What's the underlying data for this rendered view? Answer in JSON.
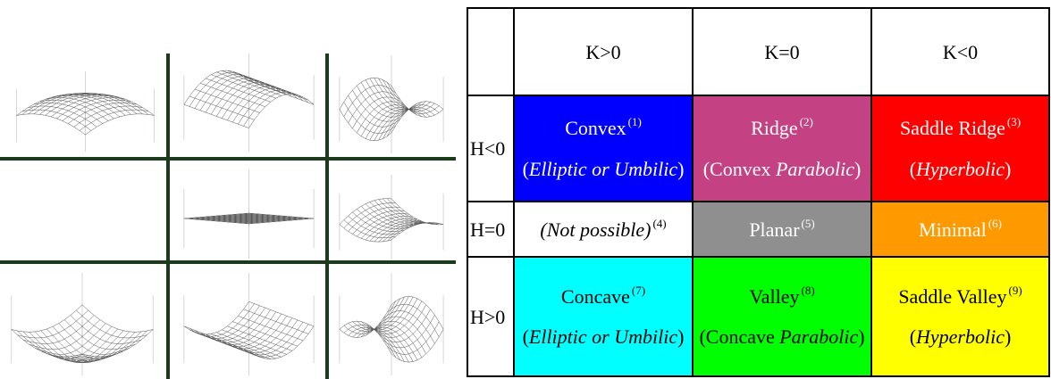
{
  "colors": {
    "convex": "#0000ff",
    "ridge": "#c44283",
    "saddle_ridge": "#ff0000",
    "not_possible": "#ffffff",
    "planar": "#8f8f8f",
    "minimal": "#ff9900",
    "concave": "#00ffff",
    "valley": "#00ff00",
    "saddle_valley": "#ffff00",
    "divider": "#1c3a1c"
  },
  "plots": [
    {
      "name": "convex-surface-plot"
    },
    {
      "name": "ridge-surface-plot"
    },
    {
      "name": "saddle-ridge-surface-plot"
    },
    {
      "name": "empty-plot"
    },
    {
      "name": "planar-surface-plot"
    },
    {
      "name": "minimal-surface-plot"
    },
    {
      "name": "concave-surface-plot"
    },
    {
      "name": "valley-surface-plot"
    },
    {
      "name": "saddle-valley-surface-plot"
    }
  ],
  "table": {
    "columns": [
      "K>0",
      "K=0",
      "K<0"
    ],
    "rows": [
      {
        "label": "H<0",
        "cells": [
          {
            "title": "Convex",
            "num": "(1)",
            "sub": "Elliptic or Umbilic",
            "sub_pre": "(",
            "sub_italic": "Elliptic or Umbilic",
            "sub_post": ")",
            "color_key": "convex",
            "text_color": "#ffffff"
          },
          {
            "title": "Ridge",
            "num": "(2)",
            "sub_pre": "(Convex ",
            "sub_italic": "Parabolic",
            "sub_post": ")",
            "color_key": "ridge",
            "text_color": "#ffffff"
          },
          {
            "title": "Saddle Ridge",
            "num": "(3)",
            "sub_pre": "(",
            "sub_italic": "Hyperbolic",
            "sub_post": ")",
            "color_key": "saddle_ridge",
            "text_color": "#ffffff"
          }
        ]
      },
      {
        "label": "H=0",
        "cells": [
          {
            "title": "(Not possible)",
            "num": "(4)",
            "italic": true,
            "color_key": "not_possible",
            "text_color": "#000000"
          },
          {
            "title": "Planar",
            "num": "(5)",
            "color_key": "planar",
            "text_color": "#ffffff"
          },
          {
            "title": "Minimal",
            "num": "(6)",
            "color_key": "minimal",
            "text_color": "#ffffff"
          }
        ]
      },
      {
        "label": "H>0",
        "cells": [
          {
            "title": "Concave",
            "num": "(7)",
            "sub_pre": "(",
            "sub_italic": "Elliptic or Umbilic",
            "sub_post": ")",
            "color_key": "concave",
            "text_color": "#000000"
          },
          {
            "title": "Valley",
            "num": "(8)",
            "sub_pre": "(Concave ",
            "sub_italic": "Parabolic",
            "sub_post": ")",
            "color_key": "valley",
            "text_color": "#000000"
          },
          {
            "title": "Saddle Valley",
            "num": "(9)",
            "sub_pre": "(",
            "sub_italic": "Hyperbolic",
            "sub_post": ")",
            "color_key": "saddle_valley",
            "text_color": "#000000"
          }
        ]
      }
    ]
  }
}
